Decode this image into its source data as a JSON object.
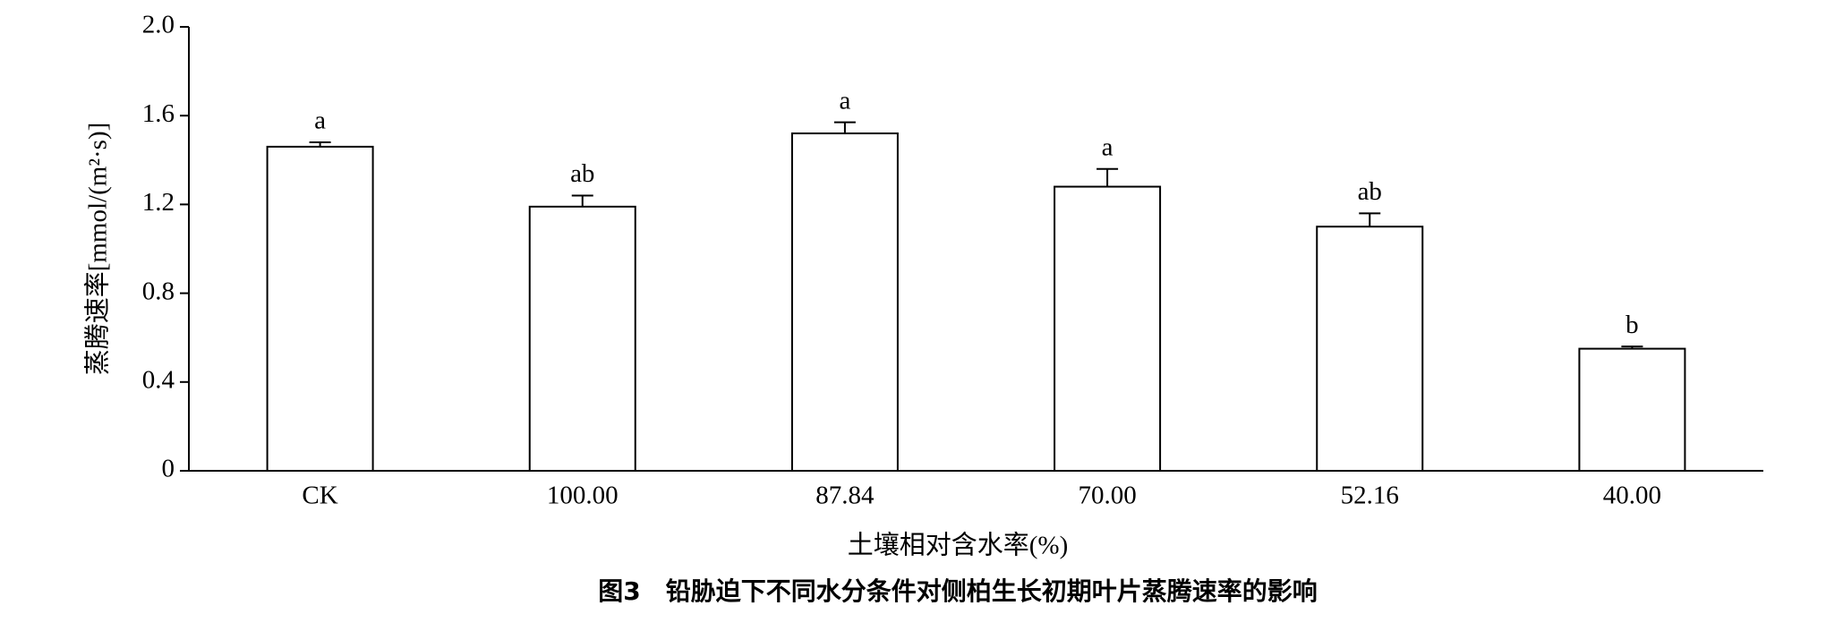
{
  "chart_data": {
    "type": "bar",
    "title": "图3　铅胁迫下不同水分条件对侧柏生长初期叶片蒸腾速率的影响",
    "x_label": "土壤相对含水率(%)",
    "y_label": "蒸腾速率[mmol/(m²·s)]",
    "categories": [
      "CK",
      "100.00",
      "87.84",
      "70.00",
      "52.16",
      "40.00"
    ],
    "values": [
      1.46,
      1.19,
      1.52,
      1.28,
      1.1,
      0.55
    ],
    "errors": [
      0.02,
      0.05,
      0.05,
      0.08,
      0.06,
      0.01
    ],
    "letters": [
      "a",
      "ab",
      "a",
      "a",
      "ab",
      "b"
    ],
    "color": "#ffffff",
    "ylim": [
      0,
      2
    ],
    "yticks": [
      0,
      0.4,
      0.8,
      1.2,
      1.6,
      {
        "value": 2,
        "label": "2.0"
      }
    ],
    "grid": false
  }
}
